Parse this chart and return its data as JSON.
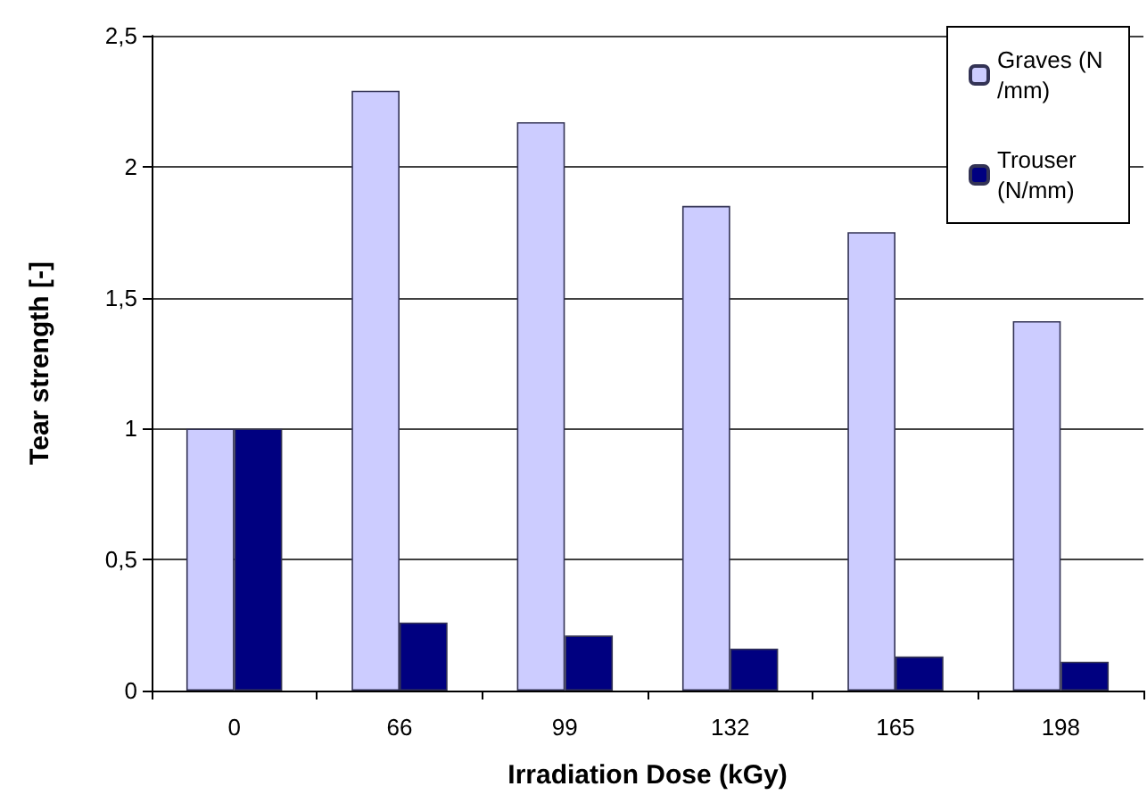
{
  "chart_data": {
    "type": "bar",
    "xlabel": "Irradiation Dose (kGy)",
    "ylabel": "Tear strength [-]",
    "categories": [
      "0",
      "66",
      "99",
      "132",
      "165",
      "198"
    ],
    "series": [
      {
        "name": "Graves (N/mm)",
        "color": "#ccccff",
        "values": [
          1.0,
          2.29,
          2.17,
          1.85,
          1.75,
          1.41
        ]
      },
      {
        "name": "Trouser (N/mm)",
        "color": "#000080",
        "values": [
          1.0,
          0.26,
          0.21,
          0.16,
          0.13,
          0.11
        ]
      }
    ],
    "ylim": [
      0,
      2.5
    ],
    "yticks": [
      0,
      {
        "value": 0.5,
        "label": "0,5"
      },
      1,
      {
        "value": 1.5,
        "label": "1,5"
      },
      2,
      {
        "value": 2.5,
        "label": "2,5"
      }
    ],
    "grid": "y",
    "legend": "top right"
  }
}
